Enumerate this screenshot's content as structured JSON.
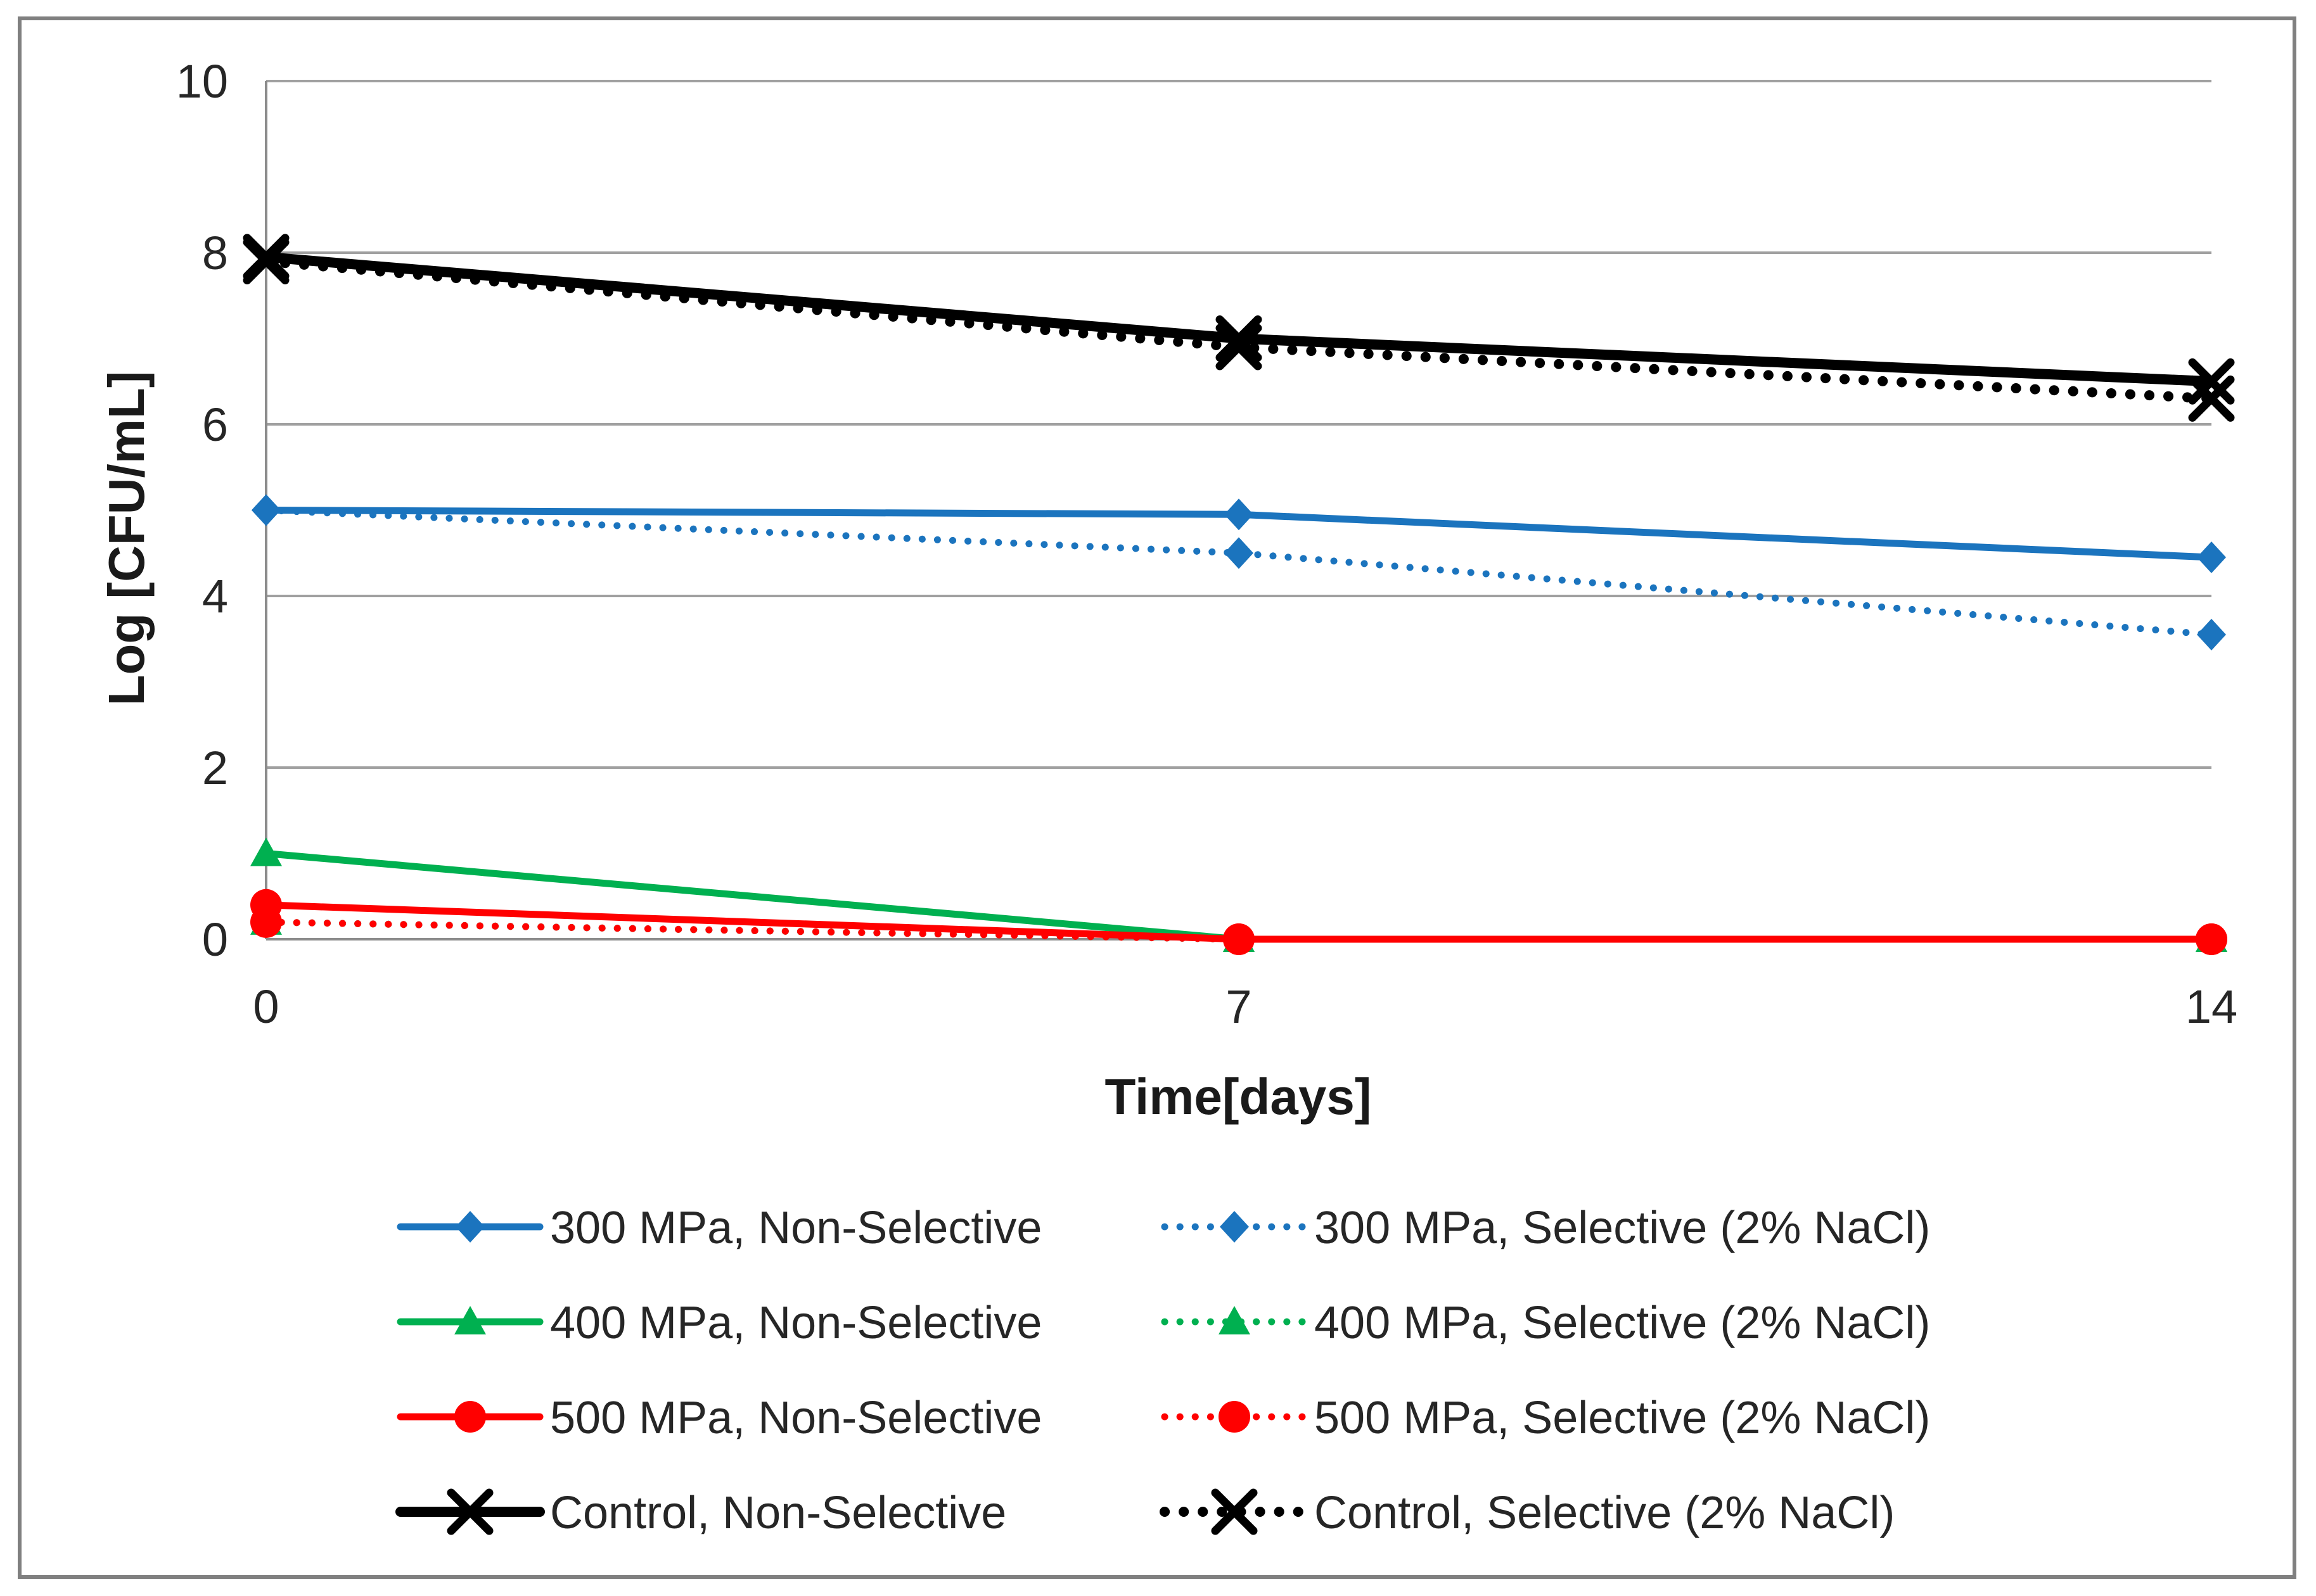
{
  "figure": {
    "background": "#FFFFFF",
    "border_color": "#808080",
    "gridline_color": "#A0A0A0",
    "axis_color": "#8C8C8C",
    "text_color": "#262626"
  },
  "chart_data": {
    "type": "line",
    "title": "",
    "xlabel": "Time[days]",
    "ylabel": "Log [CFU/mL]",
    "x": [
      0,
      7,
      14
    ],
    "x_tick_labels": [
      "0",
      "7",
      "14"
    ],
    "y_tick_values": [
      0,
      2,
      4,
      6,
      8,
      10
    ],
    "y_tick_labels": [
      "0",
      "2",
      "4",
      "6",
      "8",
      "10"
    ],
    "xlim": [
      0,
      14
    ],
    "ylim": [
      0,
      10
    ],
    "grid": "horizontal",
    "legend_position": "bottom",
    "series": [
      {
        "name": "300 MPa, Non-Selective",
        "color": "#1B74BE",
        "line": "solid",
        "marker": "diamond",
        "thick": false,
        "values": [
          5.0,
          4.95,
          4.45
        ]
      },
      {
        "name": "300 MPa, Selective (2% NaCl)",
        "color": "#1B74BE",
        "line": "dotted",
        "marker": "diamond",
        "thick": false,
        "values": [
          5.0,
          4.5,
          3.55
        ]
      },
      {
        "name": "400 MPa, Non-Selective",
        "color": "#00B050",
        "line": "solid",
        "marker": "triangle",
        "thick": false,
        "values": [
          1.0,
          0.0,
          0.0
        ]
      },
      {
        "name": "400 MPa, Selective (2% NaCl)",
        "color": "#00B050",
        "line": "dotted",
        "marker": "triangle",
        "thick": false,
        "values": [
          0.2,
          0.0,
          0.0
        ]
      },
      {
        "name": "500 MPa, Non-Selective",
        "color": "#FF0000",
        "line": "solid",
        "marker": "circle",
        "thick": false,
        "values": [
          0.4,
          0.0,
          0.0
        ]
      },
      {
        "name": "500 MPa, Selective (2% NaCl)",
        "color": "#FF0000",
        "line": "dotted",
        "marker": "circle",
        "thick": false,
        "values": [
          0.2,
          0.0,
          0.0
        ]
      },
      {
        "name": "Control, Non-Selective",
        "color": "#000000",
        "line": "solid",
        "marker": "x",
        "thick": true,
        "values": [
          7.95,
          7.0,
          6.5
        ]
      },
      {
        "name": "Control, Selective (2% NaCl)",
        "color": "#000000",
        "line": "dotted",
        "marker": "x",
        "thick": true,
        "values": [
          7.9,
          6.9,
          6.3
        ]
      }
    ]
  }
}
